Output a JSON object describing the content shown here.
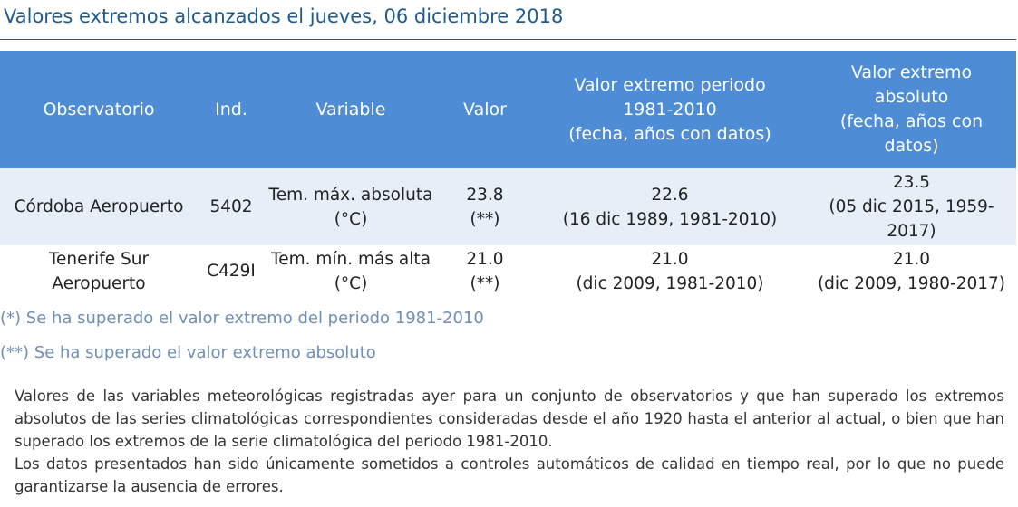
{
  "title": "Valores extremos alcanzados el jueves, 06 diciembre 2018",
  "table": {
    "headers": {
      "observatorio": "Observatorio",
      "ind": "Ind.",
      "variable": "Variable",
      "valor": "Valor",
      "periodo_line1": "Valor extremo periodo 1981-2010",
      "periodo_line2": "(fecha, años con datos)",
      "absoluto_line1": "Valor extremo absoluto",
      "absoluto_line2": "(fecha, años con datos)"
    },
    "rows": [
      {
        "observatorio": "Córdoba Aeropuerto",
        "ind": "5402",
        "variable_line1": "Tem. máx. absoluta",
        "variable_line2": "(°C)",
        "valor": "23.8",
        "valor_mark": "(**)",
        "periodo_valor": "22.6",
        "periodo_fecha": "(16 dic 1989, 1981-2010)",
        "absoluto_valor": "23.5",
        "absoluto_fecha": "(05 dic 2015, 1959-2017)"
      },
      {
        "observatorio": "Tenerife Sur Aeropuerto",
        "ind": "C429I",
        "variable_line1": "Tem. mín. más alta",
        "variable_line2": "(°C)",
        "valor": "21.0",
        "valor_mark": "(**)",
        "periodo_valor": "21.0",
        "periodo_fecha": "(dic 2009, 1981-2010)",
        "absoluto_valor": "21.0",
        "absoluto_fecha": "(dic 2009, 1980-2017)"
      }
    ]
  },
  "notes": {
    "note1": "(*) Se ha superado el valor extremo del periodo 1981-2010",
    "note2": "(**) Se ha superado el valor extremo absoluto"
  },
  "description": {
    "p1": "Valores de las variables meteorológicas registradas ayer para un conjunto de observatorios y que han superado los extremos absolutos de las series climatológicas correspondientes consideradas desde el año 1920 hasta el anterior al actual, o bien que han superado los extremos de la serie climatológica del periodo 1981-2010.",
    "p2": "Los datos presentados han sido únicamente sometidos a controles automáticos de calidad en tiempo real, por lo que no puede garantizarse la ausencia de errores."
  },
  "colors": {
    "title_text": "#1d5b8f",
    "header_bg": "#4f8cd6",
    "row_alt_bg": "#e6eff7",
    "note_text": "#6f8fb6"
  }
}
